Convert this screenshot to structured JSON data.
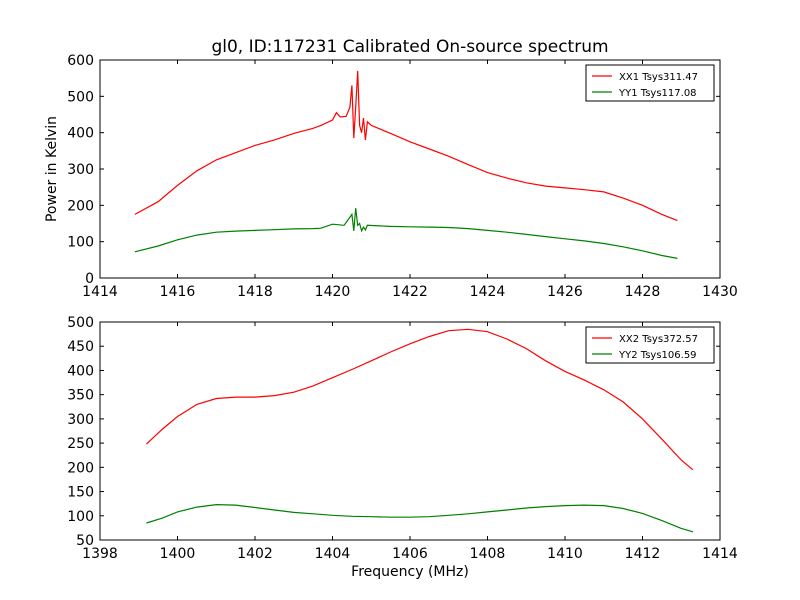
{
  "figure": {
    "title": "gl0, ID:117231 Calibrated On-source spectrum",
    "ylabel": "Power in Kelvin",
    "xlabel": "Frequency (MHz)"
  },
  "colors": {
    "xx": "#ff0000",
    "yy": "#008000"
  },
  "chart_data": [
    {
      "type": "line",
      "title": "gl0, ID:117231 Calibrated On-source spectrum",
      "xlabel": "",
      "ylabel": "Power in Kelvin",
      "xlim": [
        1414,
        1430
      ],
      "ylim": [
        0,
        600
      ],
      "xticks": [
        1414,
        1416,
        1418,
        1420,
        1422,
        1424,
        1426,
        1428,
        1430
      ],
      "yticks": [
        0,
        100,
        200,
        300,
        400,
        500,
        600
      ],
      "legend_position": "top-right",
      "grid": false,
      "series": [
        {
          "name": "XX1 Tsys311.47",
          "color": "#ff0000",
          "x": [
            1414.9,
            1415.5,
            1416.0,
            1416.5,
            1417.0,
            1417.5,
            1418.0,
            1418.5,
            1419.0,
            1419.5,
            1419.7,
            1420.0,
            1420.1,
            1420.2,
            1420.35,
            1420.45,
            1420.5,
            1420.55,
            1420.6,
            1420.65,
            1420.7,
            1420.75,
            1420.8,
            1420.85,
            1420.9,
            1421.0,
            1421.5,
            1422.0,
            1422.5,
            1423.0,
            1423.5,
            1424.0,
            1424.5,
            1425.0,
            1425.5,
            1426.0,
            1426.5,
            1427.0,
            1427.5,
            1428.0,
            1428.5,
            1428.9
          ],
          "y": [
            175,
            210,
            255,
            295,
            325,
            345,
            365,
            380,
            398,
            412,
            420,
            435,
            455,
            443,
            445,
            470,
            530,
            385,
            470,
            570,
            420,
            400,
            440,
            380,
            430,
            420,
            398,
            375,
            355,
            335,
            312,
            290,
            275,
            262,
            253,
            248,
            243,
            237,
            220,
            200,
            175,
            158
          ]
        },
        {
          "name": "YY1 Tsys117.08",
          "color": "#008000",
          "x": [
            1414.9,
            1415.5,
            1416.0,
            1416.5,
            1417.0,
            1417.5,
            1418.0,
            1418.5,
            1419.0,
            1419.5,
            1419.7,
            1420.0,
            1420.3,
            1420.5,
            1420.55,
            1420.6,
            1420.65,
            1420.7,
            1420.75,
            1420.8,
            1420.85,
            1420.9,
            1421.5,
            1422.0,
            1422.5,
            1423.0,
            1423.5,
            1424.0,
            1424.5,
            1425.0,
            1425.5,
            1426.0,
            1426.5,
            1427.0,
            1427.5,
            1428.0,
            1428.5,
            1428.9
          ],
          "y": [
            72,
            88,
            105,
            118,
            126,
            129,
            131,
            133,
            135,
            136,
            137,
            148,
            145,
            175,
            130,
            192,
            145,
            150,
            130,
            140,
            132,
            145,
            142,
            141,
            140,
            139,
            136,
            131,
            126,
            120,
            114,
            108,
            102,
            95,
            86,
            75,
            62,
            54
          ]
        }
      ]
    },
    {
      "type": "line",
      "title": "",
      "xlabel": "Frequency (MHz)",
      "ylabel": "",
      "xlim": [
        1398,
        1414
      ],
      "ylim": [
        50,
        500
      ],
      "xticks": [
        1398,
        1400,
        1402,
        1404,
        1406,
        1408,
        1410,
        1412,
        1414
      ],
      "yticks": [
        50,
        100,
        150,
        200,
        250,
        300,
        350,
        400,
        450,
        500
      ],
      "legend_position": "top-right",
      "grid": false,
      "series": [
        {
          "name": "XX2 Tsys372.57",
          "color": "#ff0000",
          "x": [
            1399.2,
            1399.6,
            1400.0,
            1400.5,
            1401.0,
            1401.5,
            1402.0,
            1402.5,
            1403.0,
            1403.5,
            1404.0,
            1404.5,
            1405.0,
            1405.5,
            1406.0,
            1406.5,
            1407.0,
            1407.5,
            1408.0,
            1408.5,
            1409.0,
            1409.5,
            1410.0,
            1410.5,
            1411.0,
            1411.5,
            1412.0,
            1412.5,
            1413.0,
            1413.3
          ],
          "y": [
            248,
            278,
            305,
            330,
            342,
            345,
            345,
            348,
            355,
            368,
            385,
            402,
            420,
            438,
            455,
            470,
            482,
            485,
            480,
            465,
            445,
            420,
            398,
            380,
            360,
            335,
            300,
            258,
            215,
            195
          ]
        },
        {
          "name": "YY2 Tsys106.59",
          "color": "#008000",
          "x": [
            1399.2,
            1399.6,
            1400.0,
            1400.5,
            1401.0,
            1401.5,
            1402.0,
            1402.5,
            1403.0,
            1403.5,
            1404.0,
            1404.5,
            1405.0,
            1405.5,
            1406.0,
            1406.5,
            1407.0,
            1407.5,
            1408.0,
            1408.5,
            1409.0,
            1409.5,
            1410.0,
            1410.5,
            1411.0,
            1411.5,
            1412.0,
            1412.5,
            1413.0,
            1413.3
          ],
          "y": [
            85,
            95,
            108,
            118,
            123,
            122,
            117,
            112,
            107,
            104,
            101,
            99,
            98,
            97,
            97,
            98,
            101,
            104,
            108,
            112,
            116,
            119,
            121,
            122,
            121,
            115,
            105,
            90,
            74,
            67
          ]
        }
      ]
    }
  ]
}
